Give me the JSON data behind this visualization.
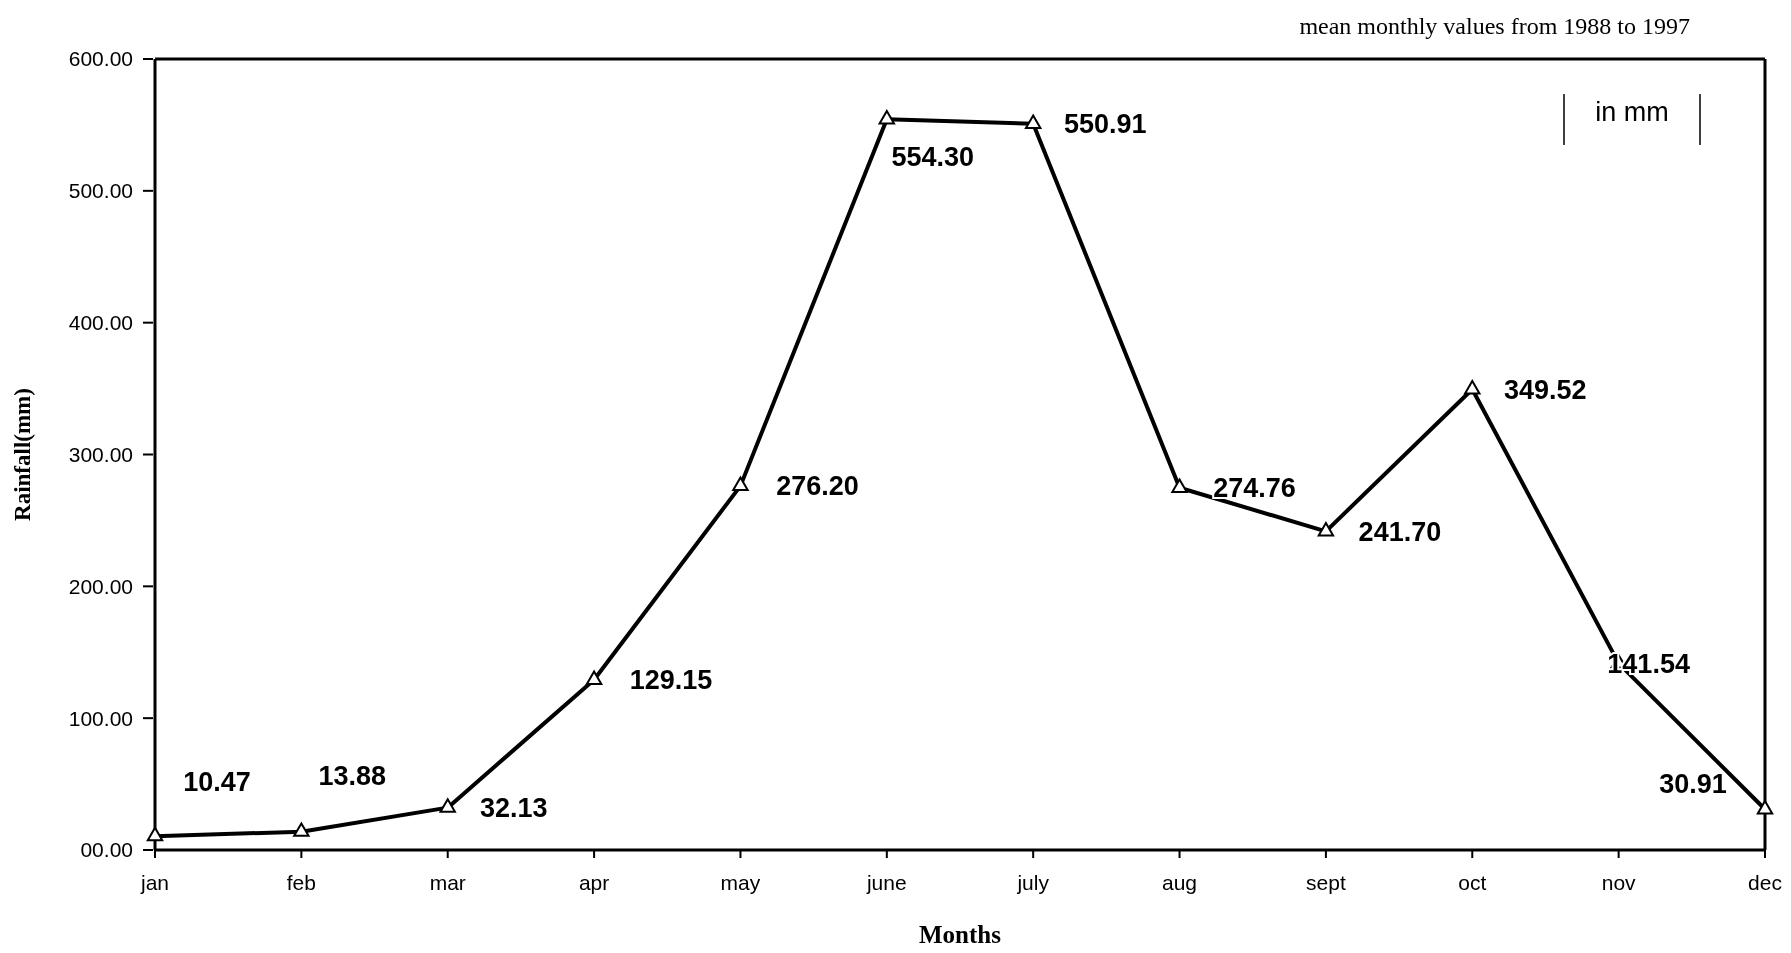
{
  "chart_data": {
    "type": "line",
    "subtitle": "mean monthly values from 1988 to 1997",
    "xlabel": "Months",
    "ylabel": "Rainfall(mm)",
    "annotations": [
      "in mm"
    ],
    "categories": [
      "jan",
      "feb",
      "mar",
      "apr",
      "may",
      "june",
      "july",
      "aug",
      "sept",
      "oct",
      "nov",
      "dec"
    ],
    "series": [
      {
        "color": "#000000",
        "values": [
          10.47,
          13.88,
          32.13,
          129.15,
          276.2,
          554.3,
          550.91,
          274.76,
          241.7,
          349.52,
          141.54,
          30.91
        ],
        "value_labels": [
          "10.47",
          "13.88",
          "32.13",
          "129.15",
          "276.20",
          "554.30",
          "550.91",
          "274.76",
          "241.70",
          "349.52",
          "141.54",
          "30.91"
        ]
      }
    ],
    "ylim": [
      0,
      600
    ],
    "yticks": [
      {
        "value": 0,
        "label": "00.00"
      },
      {
        "value": 100,
        "label": "100.00"
      },
      {
        "value": 200,
        "label": "200.00"
      },
      {
        "value": 300,
        "label": "300.00"
      },
      {
        "value": 400,
        "label": "400.00"
      },
      {
        "value": 500,
        "label": "500.00"
      },
      {
        "value": 600,
        "label": "600.00"
      }
    ],
    "marker": "triangle",
    "line_style": "solid",
    "grid": false
  }
}
